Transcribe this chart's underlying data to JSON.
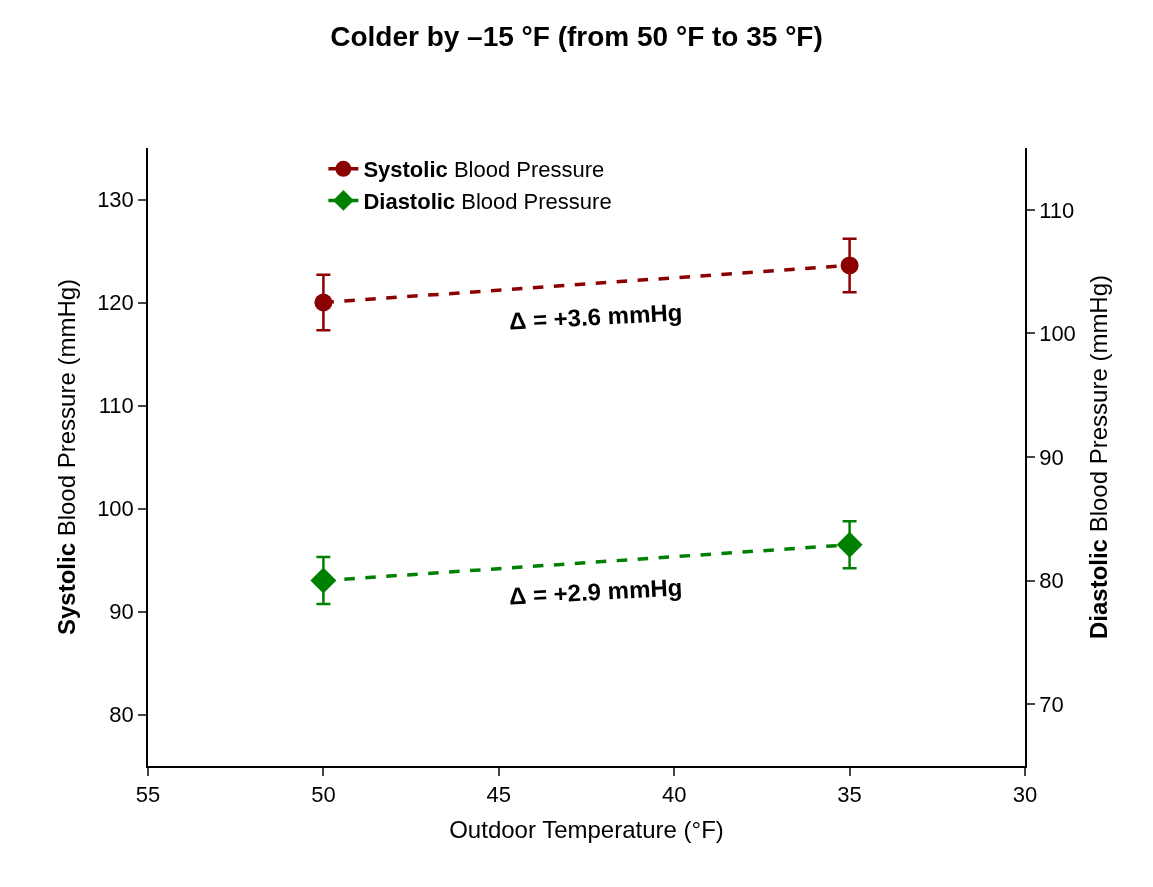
{
  "chart_data": {
    "type": "line",
    "title": "Colder by –15 °F (from 50 °F to 35 °F)",
    "xlabel": "Outdoor Temperature (°F)",
    "ylabel": "Systolic Blood Pressure (mmHg)",
    "y2label": "Diastolic Blood Pressure (mmHg)",
    "x": [
      50,
      35
    ],
    "series": [
      {
        "name": "Systolic Blood Pressure",
        "color": "#8b0000",
        "values": [
          120,
          123.6
        ],
        "errors": [
          2.7,
          2.6
        ],
        "marker": "circle",
        "line_style": "dashed"
      },
      {
        "name": "Diastolic Blood Pressure",
        "color": "#008000",
        "values": [
          80,
          82.9
        ],
        "errors": [
          1.9,
          1.9
        ],
        "marker": "diamond",
        "line_style": "dashed",
        "axis": "y2"
      }
    ],
    "annotations": [
      "Δ = +3.6 mmHg",
      "Δ = +2.9 mmHg"
    ],
    "xlim": [
      55,
      30
    ],
    "xticks": [
      55,
      50,
      45,
      40,
      35,
      30
    ],
    "ylim": [
      75,
      135
    ],
    "yticks": [
      80,
      90,
      100,
      110,
      120,
      130
    ],
    "y2lim": [
      65,
      115
    ],
    "y2ticks": [
      70,
      80,
      90,
      100,
      110
    ],
    "legend": "top"
  }
}
